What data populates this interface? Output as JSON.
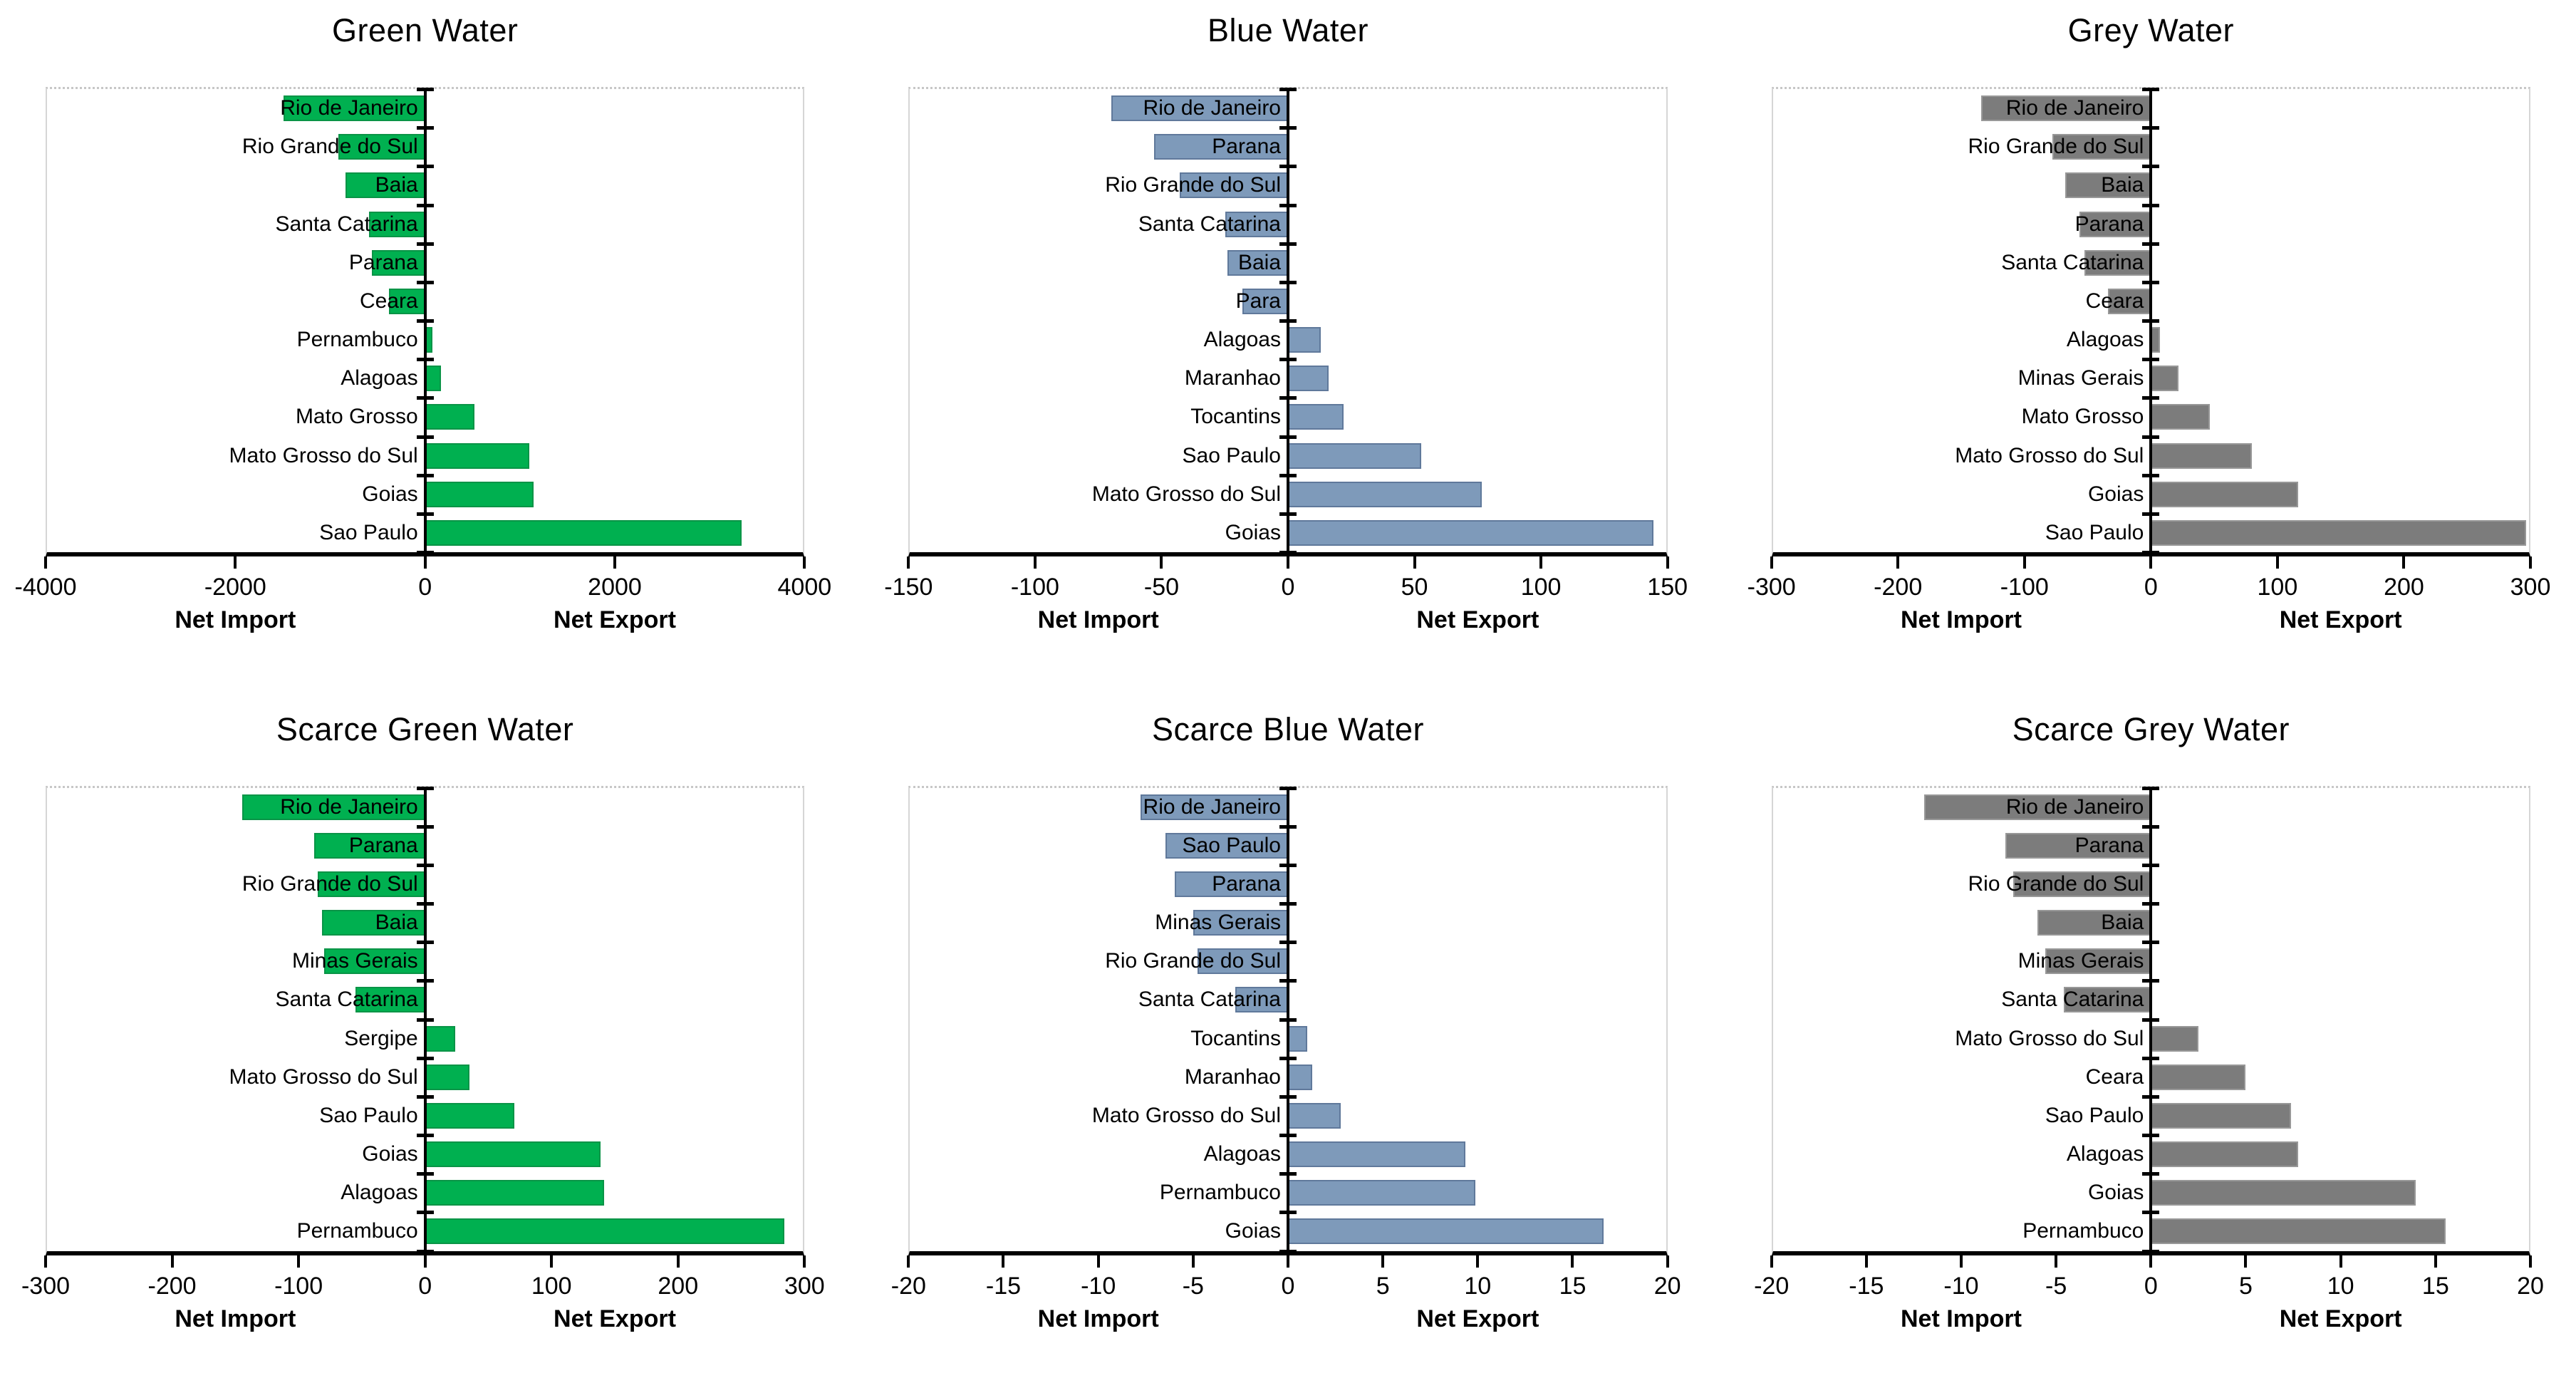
{
  "chart_data": [
    {
      "type": "bar",
      "orientation": "horizontal",
      "title": "Green Water",
      "bar_color": "#00B050",
      "bar_border_color": "#0A9447",
      "xlabel_left": "Net Import",
      "xlabel_right": "Net Export",
      "x_axis": {
        "min": -4000,
        "max": 4000,
        "ticks": [
          -4000,
          -2000,
          0,
          2000,
          4000
        ]
      },
      "categories": [
        "Rio de Janeiro",
        "Rio Grande do Sul",
        "Baia",
        "Santa Catarina",
        "Parana",
        "Ceara",
        "Pernambuco",
        "Alagoas",
        "Mato Grosso",
        "Mato Grosso do Sul",
        "Goias",
        "Sao Paulo"
      ],
      "values": [
        -1500,
        -920,
        -840,
        -590,
        -560,
        -380,
        80,
        170,
        520,
        1100,
        1150,
        3350
      ]
    },
    {
      "type": "bar",
      "orientation": "horizontal",
      "title": "Blue Water",
      "bar_color": "#7E9ABA",
      "bar_border_color": "#60799B",
      "xlabel_left": "Net Import",
      "xlabel_right": "Net Export",
      "x_axis": {
        "min": -150,
        "max": 150,
        "ticks": [
          -150,
          -100,
          -50,
          0,
          50,
          100,
          150
        ]
      },
      "categories": [
        "Rio de Janeiro",
        "Parana",
        "Rio Grande do Sul",
        "Santa Catarina",
        "Baia",
        "Para",
        "Alagoas",
        "Maranhao",
        "Tocantins",
        "Sao Paulo",
        "Mato Grosso do Sul",
        "Goias"
      ],
      "values": [
        -70,
        -53,
        -43,
        -25,
        -24,
        -18,
        13,
        16,
        22,
        53,
        77,
        145
      ]
    },
    {
      "type": "bar",
      "orientation": "horizontal",
      "title": "Grey Water",
      "bar_color": "#7C7C7C",
      "bar_border_color": "#989898",
      "xlabel_left": "Net Import",
      "xlabel_right": "Net Export",
      "x_axis": {
        "min": -300,
        "max": 300,
        "ticks": [
          -300,
          -200,
          -100,
          0,
          100,
          200,
          300
        ]
      },
      "categories": [
        "Rio de Janeiro",
        "Rio Grande do Sul",
        "Baia",
        "Parana",
        "Santa Catarina",
        "Ceara",
        "Alagoas",
        "Minas Gerais",
        "Mato Grosso",
        "Mato Grosso do Sul",
        "Goias",
        "Sao Paulo"
      ],
      "values": [
        -135,
        -78,
        -68,
        -57,
        -53,
        -34,
        7,
        22,
        47,
        80,
        117,
        298
      ]
    },
    {
      "type": "bar",
      "orientation": "horizontal",
      "title": "Scarce Green Water",
      "bar_color": "#00B050",
      "bar_border_color": "#0A9447",
      "xlabel_left": "Net Import",
      "xlabel_right": "Net Export",
      "x_axis": {
        "min": -300,
        "max": 300,
        "ticks": [
          -300,
          -200,
          -100,
          0,
          100,
          200,
          300
        ]
      },
      "categories": [
        "Rio de Janeiro",
        "Parana",
        "Rio Grande do Sul",
        "Baia",
        "Minas Gerais",
        "Santa Catarina",
        "Sergipe",
        "Mato Grosso do Sul",
        "Sao Paulo",
        "Goias",
        "Alagoas",
        "Pernambuco"
      ],
      "values": [
        -145,
        -88,
        -85,
        -82,
        -80,
        -55,
        24,
        35,
        71,
        139,
        142,
        285
      ]
    },
    {
      "type": "bar",
      "orientation": "horizontal",
      "title": "Scarce Blue Water",
      "bar_color": "#7E9ABA",
      "bar_border_color": "#60799B",
      "xlabel_left": "Net Import",
      "xlabel_right": "Net Export",
      "x_axis": {
        "min": -20,
        "max": 20,
        "ticks": [
          -20,
          -15,
          -10,
          -5,
          0,
          5,
          10,
          15,
          20
        ]
      },
      "categories": [
        "Rio de Janeiro",
        "Sao Paulo",
        "Parana",
        "Minas Gerais",
        "Rio Grande do Sul",
        "Santa Catarina",
        "Tocantins",
        "Maranhao",
        "Mato Grosso do Sul",
        "Alagoas",
        "Pernambuco",
        "Goias"
      ],
      "values": [
        -7.8,
        -6.5,
        -6,
        -5,
        -4.8,
        -2.8,
        1,
        1.3,
        2.8,
        9.4,
        9.9,
        16.7
      ]
    },
    {
      "type": "bar",
      "orientation": "horizontal",
      "title": "Scarce Grey Water",
      "bar_color": "#7C7C7C",
      "bar_border_color": "#989898",
      "xlabel_left": "Net Import",
      "xlabel_right": "Net Export",
      "x_axis": {
        "min": -20,
        "max": 20,
        "ticks": [
          -20,
          -15,
          -10,
          -5,
          0,
          5,
          10,
          15,
          20
        ]
      },
      "categories": [
        "Rio de Janeiro",
        "Parana",
        "Rio Grande do Sul",
        "Baia",
        "Minas Gerais",
        "Santa Catarina",
        "Mato Grosso do Sul",
        "Ceara",
        "Sao Paulo",
        "Alagoas",
        "Goias",
        "Pernambuco"
      ],
      "values": [
        -12,
        -7.7,
        -7.3,
        -6,
        -5.6,
        -4.6,
        2.5,
        5,
        7.4,
        7.8,
        14,
        15.6
      ]
    }
  ]
}
